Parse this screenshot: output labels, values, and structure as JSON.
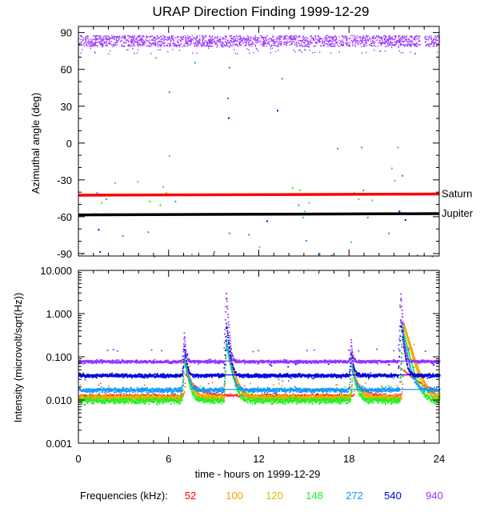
{
  "title": "URAP Direction Finding  1999-12-29",
  "chart_data": [
    {
      "type": "scatter",
      "panel": "top",
      "ylabel": "Azimuthal angle (deg)",
      "ylim": [
        -92,
        95
      ],
      "yticks": [
        90,
        60,
        30,
        0,
        -30,
        -60,
        -90
      ],
      "ytick_labels": [
        "90",
        "60",
        "30",
        "0",
        "-30",
        "-60",
        "-90"
      ],
      "xlim": [
        0,
        24
      ],
      "grid": false,
      "reference_lines": [
        {
          "name": "Saturn",
          "label": "Saturn",
          "color": "#ff0000",
          "y_start": -42.5,
          "y_end": -41.5
        },
        {
          "name": "Jupiter",
          "label": "Jupiter",
          "color": "#000000",
          "y_start": -58.5,
          "y_end": -57.5
        }
      ],
      "band": {
        "series": "940",
        "y_min": 79,
        "y_max": 88
      },
      "scatter_points": [
        {
          "x": 10.0,
          "y": 62,
          "series": "940"
        },
        {
          "x": 9.9,
          "y": 37,
          "series": "940"
        },
        {
          "x": 9.95,
          "y": 21,
          "series": "540"
        },
        {
          "x": 13.2,
          "y": 27,
          "series": "540"
        },
        {
          "x": 13.5,
          "y": 53,
          "series": "272"
        },
        {
          "x": 6.0,
          "y": 42,
          "series": "272"
        },
        {
          "x": 5.1,
          "y": 70,
          "series": "148"
        },
        {
          "x": 7.7,
          "y": 66,
          "series": "272"
        },
        {
          "x": 6.0,
          "y": -10,
          "series": "148"
        },
        {
          "x": 17.2,
          "y": -4,
          "series": "272"
        },
        {
          "x": 18.8,
          "y": -3,
          "series": "272"
        },
        {
          "x": 21.2,
          "y": -3,
          "series": "148"
        },
        {
          "x": 20.8,
          "y": -20,
          "series": "148"
        },
        {
          "x": 21.5,
          "y": -26,
          "series": "940"
        },
        {
          "x": 1.2,
          "y": -40,
          "series": "272"
        },
        {
          "x": 1.5,
          "y": -48,
          "series": "148"
        },
        {
          "x": 1.8,
          "y": -45,
          "series": "272"
        },
        {
          "x": 2.4,
          "y": -32,
          "series": "100"
        },
        {
          "x": 3.9,
          "y": -31,
          "series": "148"
        },
        {
          "x": 5.6,
          "y": -35,
          "series": "148"
        },
        {
          "x": 5.8,
          "y": -40,
          "series": "120"
        },
        {
          "x": 5.4,
          "y": -50,
          "series": "148"
        },
        {
          "x": 4.7,
          "y": -47,
          "series": "148"
        },
        {
          "x": 6.4,
          "y": -47,
          "series": "272"
        },
        {
          "x": 1.3,
          "y": -70,
          "series": "540"
        },
        {
          "x": 1.1,
          "y": -57,
          "series": "272"
        },
        {
          "x": 2.9,
          "y": -75,
          "series": "272"
        },
        {
          "x": 4.6,
          "y": -72,
          "series": "272"
        },
        {
          "x": 1.4,
          "y": -88,
          "series": "540"
        },
        {
          "x": 5.0,
          "y": -92,
          "series": "148"
        },
        {
          "x": 10.0,
          "y": -73,
          "series": "272"
        },
        {
          "x": 11.3,
          "y": -74,
          "series": "272"
        },
        {
          "x": 12.0,
          "y": -84,
          "series": "148"
        },
        {
          "x": 12.5,
          "y": -63,
          "series": "540"
        },
        {
          "x": 14.2,
          "y": -36,
          "series": "148"
        },
        {
          "x": 14.4,
          "y": -42,
          "series": "120"
        },
        {
          "x": 14.7,
          "y": -38,
          "series": "148"
        },
        {
          "x": 14.6,
          "y": -50,
          "series": "272"
        },
        {
          "x": 15.0,
          "y": -55,
          "series": "148"
        },
        {
          "x": 15.3,
          "y": -48,
          "series": "148"
        },
        {
          "x": 14.9,
          "y": -60,
          "series": "148"
        },
        {
          "x": 15.1,
          "y": -79,
          "series": "272"
        },
        {
          "x": 16.0,
          "y": -90,
          "series": "272"
        },
        {
          "x": 16.8,
          "y": -91,
          "series": "940"
        },
        {
          "x": 18.3,
          "y": -40,
          "series": "148"
        },
        {
          "x": 18.6,
          "y": -45,
          "series": "148"
        },
        {
          "x": 18.9,
          "y": -38,
          "series": "272"
        },
        {
          "x": 19.5,
          "y": -46,
          "series": "148"
        },
        {
          "x": 19.2,
          "y": -60,
          "series": "272"
        },
        {
          "x": 18.1,
          "y": -80,
          "series": "148"
        },
        {
          "x": 20.6,
          "y": -73,
          "series": "272"
        },
        {
          "x": 21.3,
          "y": -55,
          "series": "540"
        },
        {
          "x": 21.7,
          "y": -62,
          "series": "540"
        },
        {
          "x": 21.6,
          "y": -41,
          "series": "148"
        },
        {
          "x": 21.0,
          "y": -30,
          "series": "148"
        },
        {
          "x": 0.2,
          "y": -90,
          "series": "148"
        },
        {
          "x": 7.5,
          "y": -90,
          "series": "148"
        },
        {
          "x": 9.0,
          "y": -88,
          "series": "272"
        },
        {
          "x": 23.5,
          "y": -92,
          "series": "148"
        },
        {
          "x": 22.5,
          "y": -91,
          "series": "940"
        }
      ]
    },
    {
      "type": "line",
      "panel": "bottom",
      "title": "",
      "xlabel": "time - hours on 1999-12-29",
      "ylabel": "Intensity (microvolt/sqrt(Hz))",
      "yscale": "log",
      "ylim": [
        0.001,
        10.0
      ],
      "yticks": [
        10.0,
        1.0,
        0.1,
        0.01,
        0.001
      ],
      "ytick_labels": [
        "10.000",
        "1.000",
        "0.100",
        "0.010",
        "0.001"
      ],
      "xlim": [
        0,
        24
      ],
      "xticks": [
        0,
        6,
        12,
        18,
        24
      ],
      "xtick_labels": [
        "0",
        "6",
        "12",
        "18",
        "24"
      ],
      "grid": false,
      "legend": {
        "title": "Frequencies (kHz):",
        "placement": "bottom",
        "entries": [
          "52",
          "100",
          "120",
          "148",
          "272",
          "540",
          "940"
        ]
      },
      "series": [
        {
          "name": "52",
          "color": "#ff0000",
          "baseline": 0.013,
          "noise": 0.05,
          "thin": true,
          "bursts": [
            [
              7.1,
              0.028,
              1.6
            ],
            [
              18.4,
              0.018,
              1.2
            ],
            [
              21.6,
              0.038,
              3.0
            ]
          ]
        },
        {
          "name": "100",
          "color": "#ff9900",
          "baseline": 0.0118,
          "noise": 0.09,
          "bursts": [
            [
              7.0,
              0.09,
              0.8
            ],
            [
              9.8,
              0.2,
              0.9
            ],
            [
              18.2,
              0.05,
              0.8
            ],
            [
              21.6,
              0.6,
              1.1
            ]
          ]
        },
        {
          "name": "120",
          "color": "#ddbb00",
          "baseline": 0.0112,
          "noise": 0.09,
          "bursts": [
            [
              7.0,
              0.085,
              0.7
            ],
            [
              9.8,
              0.19,
              0.8
            ],
            [
              18.2,
              0.045,
              0.7
            ],
            [
              21.6,
              0.55,
              1.0
            ]
          ]
        },
        {
          "name": "148",
          "color": "#22ee22",
          "baseline": 0.01,
          "noise": 0.1,
          "bursts": [
            [
              7.0,
              0.08,
              0.6
            ],
            [
              9.8,
              0.18,
              0.7
            ],
            [
              18.2,
              0.04,
              0.6
            ],
            [
              21.5,
              0.5,
              0.9
            ]
          ]
        },
        {
          "name": "272",
          "color": "#1199ff",
          "baseline": 0.0175,
          "noise": 0.08,
          "bursts": [
            [
              7.0,
              0.1,
              0.5
            ],
            [
              9.8,
              0.25,
              0.55
            ],
            [
              18.1,
              0.06,
              0.5
            ],
            [
              21.5,
              0.4,
              0.7
            ]
          ]
        },
        {
          "name": "540",
          "color": "#0000dd",
          "baseline": 0.038,
          "noise": 0.06,
          "bursts": [
            [
              7.0,
              0.15,
              0.35
            ],
            [
              9.8,
              0.6,
              0.4
            ],
            [
              18.1,
              0.1,
              0.35
            ],
            [
              21.4,
              0.7,
              0.4
            ]
          ]
        },
        {
          "name": "940",
          "color": "#9933ff",
          "baseline": 0.08,
          "noise": 0.05,
          "bursts": [
            [
              7.0,
              0.3,
              0.2
            ],
            [
              9.8,
              3.2,
              0.25
            ],
            [
              18.1,
              0.18,
              0.2
            ],
            [
              21.4,
              3.0,
              0.25
            ]
          ]
        }
      ]
    }
  ]
}
